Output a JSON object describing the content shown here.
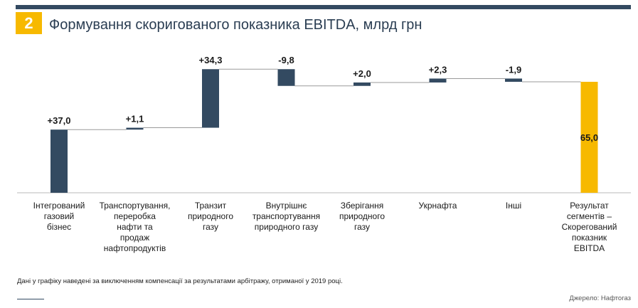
{
  "header": {
    "badge": "2",
    "title": "Формування скоригованого показника EBITDA, млрд грн"
  },
  "colors": {
    "bar": "#334a61",
    "total": "#f7b900",
    "rule": "#334a61"
  },
  "chart_data": {
    "type": "bar",
    "subtype": "waterfall",
    "title": "Формування скоригованого показника EBITDA, млрд грн",
    "categories": [
      [
        "Інтегрований",
        "газовий",
        "бізнес"
      ],
      [
        "Транспортування,",
        "переробка",
        "нафти та",
        "продаж",
        "нафтопродуктів"
      ],
      [
        "Транзит",
        "природного",
        "газу"
      ],
      [
        "Внутрішнє",
        "транспортування",
        "природного газу"
      ],
      [
        "Зберігання",
        "природного",
        "газу"
      ],
      [
        "Укрнафта"
      ],
      [
        "Інші"
      ],
      [
        "Результат",
        "сегментів –",
        "Скорегований",
        "показник",
        "EBITDA"
      ]
    ],
    "values": [
      37.0,
      1.1,
      34.3,
      -9.8,
      2.0,
      2.3,
      -1.9,
      65.0
    ],
    "value_labels": [
      "+37,0",
      "+1,1",
      "+34,3",
      "-9,8",
      "+2,0",
      "+2,3",
      "-1,9",
      "65,0"
    ],
    "is_total": [
      false,
      false,
      false,
      false,
      false,
      false,
      false,
      true
    ],
    "ylim": [
      0,
      75
    ],
    "grid": false
  },
  "footer": {
    "note": "Дані у графіку наведені за виключенням компенсації за результатами арбітражу, отриманої у 2019 році.",
    "source": "Джерело: Нафтогаз"
  }
}
